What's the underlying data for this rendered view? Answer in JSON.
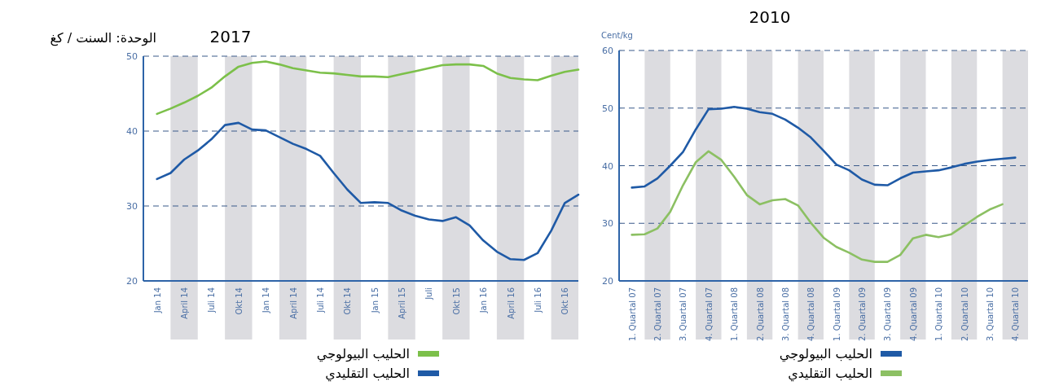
{
  "chart_data": [
    {
      "type": "line",
      "title": "2017",
      "annotations": [
        "الوحدة: السنت / كغ"
      ],
      "categories": [
        "Jan 14",
        null,
        "April 14",
        null,
        "Juli 14",
        null,
        "Okt 14",
        null,
        "Jan 14",
        null,
        "April 14",
        null,
        "Juli 14",
        null,
        "Okt 14",
        null,
        "Jan 15",
        null,
        "April 15",
        null,
        "Juli",
        null,
        "Okt 15",
        null,
        "Jan 16",
        null,
        "April 16",
        null,
        "Juli 16",
        null,
        "Okt 16",
        null
      ],
      "series": [
        {
          "name": "الحليب البيولوجي",
          "color": "#7cc04a",
          "values": [
            42.3,
            43.0,
            43.8,
            44.7,
            45.8,
            47.3,
            48.6,
            49.1,
            49.3,
            48.9,
            48.4,
            48.1,
            47.8,
            47.7,
            47.5,
            47.3,
            47.3,
            47.2,
            47.6,
            48.0,
            48.4,
            48.8,
            48.9,
            48.9,
            48.7,
            47.7,
            47.1,
            46.9,
            46.8,
            47.4,
            47.9,
            48.2
          ]
        },
        {
          "name": "الحليب التقليدي",
          "color": "#1f5aa6",
          "values": [
            33.6,
            34.4,
            36.2,
            37.4,
            38.9,
            40.8,
            41.1,
            40.2,
            40.1,
            39.2,
            38.3,
            37.6,
            36.7,
            34.4,
            32.2,
            30.4,
            30.5,
            30.4,
            29.4,
            28.7,
            28.2,
            28.0,
            28.5,
            27.4,
            25.4,
            23.9,
            22.9,
            22.8,
            23.7,
            26.7,
            30.4,
            31.5
          ]
        }
      ],
      "ylim": [
        20,
        50
      ],
      "yticks": [
        20,
        30,
        40,
        50
      ],
      "grid": "y",
      "legend": "bottom",
      "line_style": "solid",
      "marker": "none"
    },
    {
      "type": "line",
      "title": "2010",
      "ylabel": "Cent/kg",
      "categories": [
        "1. Quartal 07",
        null,
        "2. Quartal 07",
        null,
        "3. Quartal 07",
        null,
        "4. Quartal 07",
        null,
        "1. Quartal 08",
        null,
        "2. Quartal 08",
        null,
        "3. Quartal 08",
        null,
        "4. Quartal 08",
        null,
        "1. Quartal 09",
        null,
        "2. Quartal 09",
        null,
        "3. Quartal 09",
        null,
        "4. Quartal 09",
        null,
        "1. Quartal 10",
        null,
        "2. Quartal 10",
        null,
        "3. Quartal 10",
        null,
        "4. Quartal 10",
        null
      ],
      "series": [
        {
          "name": "الحليب البيولوجي",
          "color": "#1f5aa6",
          "values": [
            36.2,
            36.4,
            37.8,
            40.0,
            42.4,
            46.3,
            49.8,
            49.9,
            50.2,
            49.9,
            49.3,
            49.0,
            48.0,
            46.6,
            44.9,
            42.6,
            40.2,
            39.2,
            37.6,
            36.7,
            36.6,
            37.8,
            38.8,
            39.0,
            39.2,
            39.7,
            40.3,
            40.7,
            41.0,
            41.2,
            41.4,
            null
          ]
        },
        {
          "name": "الحليب التقليدي",
          "color": "#8cc063",
          "values": [
            28.0,
            28.1,
            29.1,
            32.0,
            36.6,
            40.6,
            42.5,
            41.0,
            38.1,
            34.9,
            33.3,
            34.0,
            34.2,
            33.1,
            30.1,
            27.5,
            25.9,
            24.9,
            23.7,
            23.3,
            23.3,
            24.5,
            27.4,
            28.0,
            27.6,
            28.1,
            29.6,
            31.1,
            32.4,
            33.3,
            null,
            null
          ]
        }
      ],
      "ylim": [
        20,
        60
      ],
      "yticks": [
        20,
        30,
        40,
        50,
        60
      ],
      "grid": "y",
      "legend": "bottom",
      "line_style": "solid",
      "marker": "none"
    }
  ]
}
